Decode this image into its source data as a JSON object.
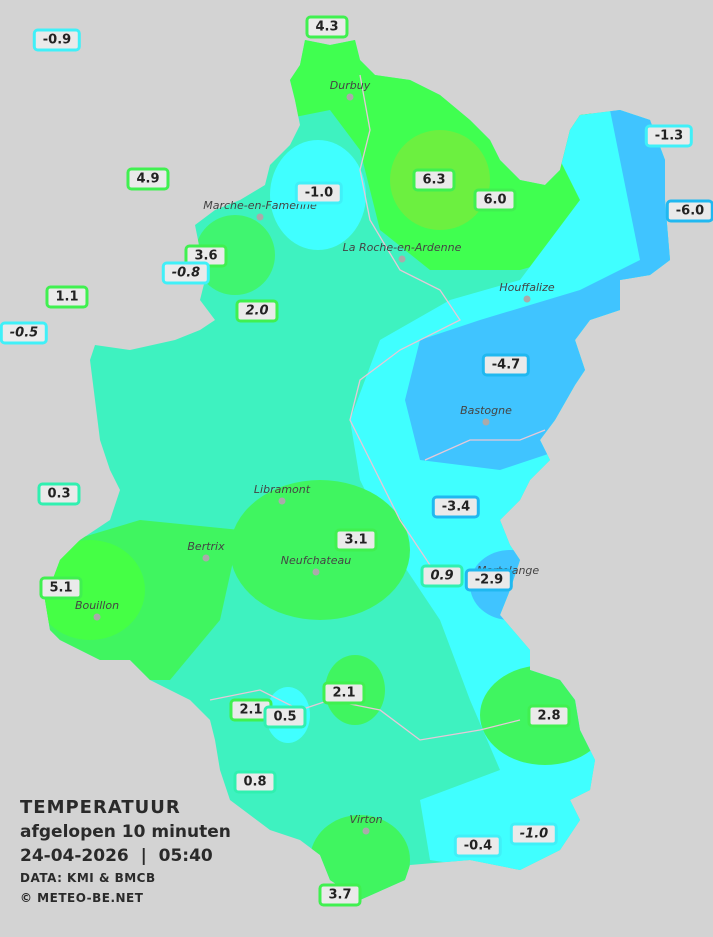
{
  "legend": {
    "title": "TEMPERATUUR",
    "subtitle": "afgelopen 10 minuten",
    "datetime": "24-04-2026  |  05:40",
    "source": "DATA: KMI & BMCB",
    "copyright": "© METEO-BE.NET"
  },
  "colors": {
    "background": "#d3d3d3",
    "base": "#3ef2c0",
    "warm": "#40ff50",
    "cool": "#40ffff",
    "cold": "#40c4ff"
  },
  "towns": [
    "Durbuy",
    "Marche-en-Famenne",
    "La Roche-en-Ardenne",
    "Houffalize",
    "Bastogne",
    "Libramont",
    "Bertrix",
    "Neufchateau",
    "Bouillon",
    "Martelange",
    "Virton"
  ],
  "stations": [
    {
      "value": "-0.9",
      "italic": false
    },
    {
      "value": "4.3",
      "italic": false
    },
    {
      "value": "-1.3",
      "italic": false
    },
    {
      "value": "4.9",
      "italic": false
    },
    {
      "value": "-1.0",
      "italic": false
    },
    {
      "value": "6.3",
      "italic": false
    },
    {
      "value": "6.0",
      "italic": false
    },
    {
      "value": "-6.0",
      "italic": false
    },
    {
      "value": "3.6",
      "italic": false
    },
    {
      "value": "-0.8",
      "italic": true
    },
    {
      "value": "1.1",
      "italic": false
    },
    {
      "value": "-0.5",
      "italic": true
    },
    {
      "value": "2.0",
      "italic": true
    },
    {
      "value": "-4.7",
      "italic": false
    },
    {
      "value": "0.3",
      "italic": false
    },
    {
      "value": "-3.4",
      "italic": false
    },
    {
      "value": "3.1",
      "italic": false
    },
    {
      "value": "0.9",
      "italic": true
    },
    {
      "value": "-2.9",
      "italic": false
    },
    {
      "value": "5.1",
      "italic": false
    },
    {
      "value": "2.1",
      "italic": false
    },
    {
      "value": "2.1",
      "italic": false
    },
    {
      "value": "0.5",
      "italic": false
    },
    {
      "value": "2.8",
      "italic": false
    },
    {
      "value": "0.8",
      "italic": false
    },
    {
      "value": "-0.4",
      "italic": false
    },
    {
      "value": "-1.0",
      "italic": true
    },
    {
      "value": "3.7",
      "italic": false
    }
  ]
}
